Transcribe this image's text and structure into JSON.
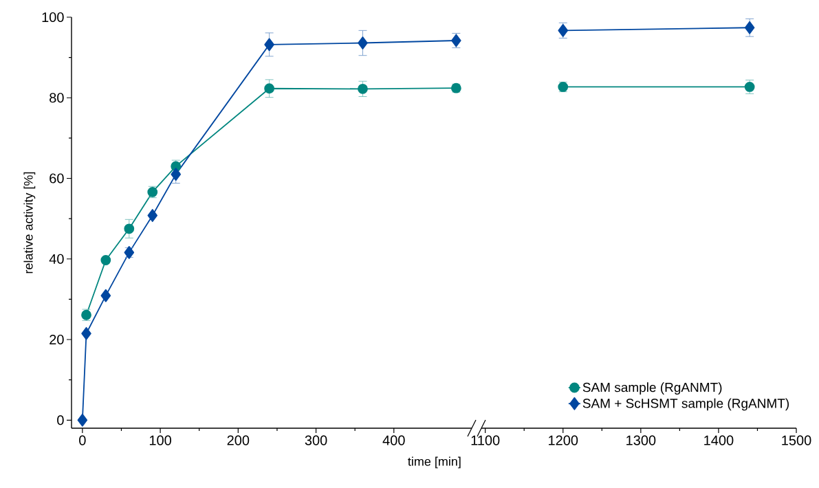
{
  "chart_data": [
    {
      "type": "line",
      "xlabel": "time [min]",
      "ylabel": "relative activity [%]",
      "x": [
        0,
        5,
        30,
        60,
        90,
        120,
        240,
        360,
        480
      ],
      "series": [
        {
          "color": "#00867f",
          "marker": "circle",
          "values": [
            null,
            26.1,
            39.7,
            47.5,
            56.6,
            63.0,
            82.3,
            82.2,
            82.4
          ],
          "errors": [
            null,
            1.4,
            0.6,
            2.3,
            1.4,
            1.5,
            2.2,
            1.9,
            1.0
          ]
        },
        {
          "color": "#0047a0",
          "marker": "diamond",
          "values": [
            0,
            21.5,
            30.9,
            41.6,
            50.8,
            61.0,
            93.2,
            93.6,
            94.2
          ],
          "errors": [
            null,
            null,
            null,
            1.2,
            null,
            2.2,
            2.9,
            3.1,
            1.8
          ]
        }
      ],
      "xlim": [
        -14,
        500
      ],
      "ylim": [
        -2,
        100
      ],
      "xticks": [
        0,
        100,
        200,
        300,
        400
      ],
      "yticks": [
        0,
        20,
        40,
        60,
        80,
        100
      ]
    },
    {
      "type": "line",
      "x": [
        1200,
        1440
      ],
      "series": [
        {
          "name": "SAM sample (RgANMT)",
          "color": "#00867f",
          "marker": "circle",
          "values": [
            82.7,
            82.7
          ],
          "errors": [
            1.2,
            1.7
          ]
        },
        {
          "name": "SAM + ScHSMT sample (RgANMT)",
          "color": "#0047a0",
          "marker": "diamond",
          "values": [
            96.7,
            97.4
          ],
          "errors": [
            1.9,
            2.2
          ]
        }
      ],
      "xlim": [
        1095,
        1500
      ],
      "ylim": [
        -2,
        100
      ],
      "xticks": [
        1100,
        1200,
        1300,
        1400,
        1500
      ],
      "tick_labels": "x",
      "legend": "bottom right"
    }
  ]
}
